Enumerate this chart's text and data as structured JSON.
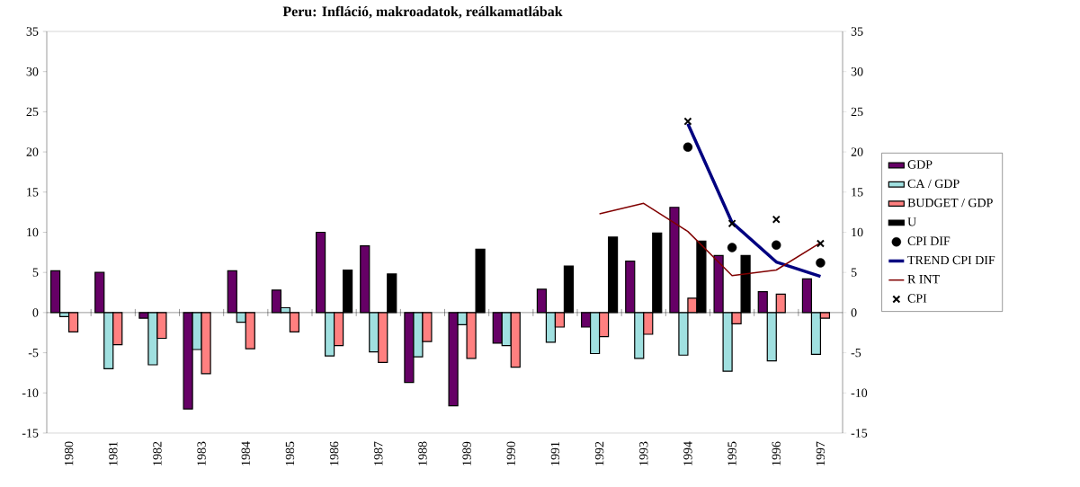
{
  "chart_data": {
    "type": "bar",
    "title": "Peru: Infláció, makroadatok, reálkamatlábak",
    "categories": [
      "1980",
      "1981",
      "1982",
      "1983",
      "1984",
      "1985",
      "1986",
      "1987",
      "1988",
      "1989",
      "1990",
      "1991",
      "1992",
      "1993",
      "1994",
      "1995",
      "1996",
      "1997"
    ],
    "series": [
      {
        "name": "GDP",
        "color": "#660066",
        "values": [
          5.2,
          5.0,
          -0.7,
          -12.0,
          5.2,
          2.8,
          10.0,
          8.3,
          -8.7,
          -11.6,
          -3.8,
          2.9,
          -1.8,
          6.4,
          13.1,
          7.1,
          2.6,
          4.2
        ]
      },
      {
        "name": "CA / GDP",
        "color": "#a0e0e0",
        "values": [
          -0.5,
          -7.0,
          -6.5,
          -4.6,
          -1.2,
          0.6,
          -5.4,
          -4.9,
          -5.5,
          -1.5,
          -4.1,
          -3.7,
          -5.1,
          -5.7,
          -5.3,
          -7.3,
          -6.0,
          -5.2
        ]
      },
      {
        "name": "BUDGET / GDP",
        "color": "#ff8080",
        "values": [
          -2.4,
          -4.0,
          -3.2,
          -7.6,
          -4.5,
          -2.4,
          -4.1,
          -6.2,
          -3.6,
          -5.7,
          -6.8,
          -1.8,
          -3.0,
          -2.7,
          1.8,
          -1.4,
          2.3,
          -0.7
        ]
      },
      {
        "name": "U",
        "color": "#000000",
        "values": [
          null,
          null,
          null,
          null,
          null,
          null,
          5.3,
          4.8,
          null,
          7.9,
          null,
          5.8,
          9.4,
          9.9,
          8.9,
          7.1,
          null,
          null
        ]
      },
      {
        "name": "CPI DIF",
        "type": "scatter",
        "marker": "circle",
        "color": "#000000",
        "values": [
          null,
          null,
          null,
          null,
          null,
          null,
          null,
          null,
          null,
          null,
          null,
          null,
          null,
          null,
          20.6,
          8.1,
          8.4,
          6.2
        ]
      },
      {
        "name": "TREND CPI DIF",
        "type": "line",
        "line_style": "solid",
        "color": "#000080",
        "values": [
          null,
          null,
          null,
          null,
          null,
          null,
          null,
          null,
          null,
          null,
          null,
          null,
          null,
          null,
          23.5,
          11.2,
          6.3,
          4.5
        ]
      },
      {
        "name": "R INT",
        "type": "line",
        "line_style": "solid",
        "color": "#800000",
        "values": [
          null,
          null,
          null,
          null,
          null,
          null,
          null,
          null,
          null,
          null,
          null,
          null,
          12.3,
          13.6,
          10.1,
          4.6,
          5.3,
          8.7
        ]
      },
      {
        "name": "CPI",
        "type": "scatter",
        "marker": "cross",
        "color": "#000000",
        "values": [
          null,
          null,
          null,
          null,
          null,
          null,
          null,
          null,
          null,
          null,
          null,
          null,
          null,
          null,
          23.8,
          11.1,
          11.6,
          8.6
        ]
      }
    ],
    "ylim": [
      -15,
      35
    ],
    "yticks": [
      -15,
      -10,
      -5,
      0,
      5,
      10,
      15,
      20,
      25,
      30,
      35
    ],
    "y2lim": [
      -15,
      35
    ],
    "y2ticks": [
      -15,
      -10,
      -5,
      0,
      5,
      10,
      15,
      20,
      25,
      30,
      35
    ],
    "legend": "right"
  }
}
